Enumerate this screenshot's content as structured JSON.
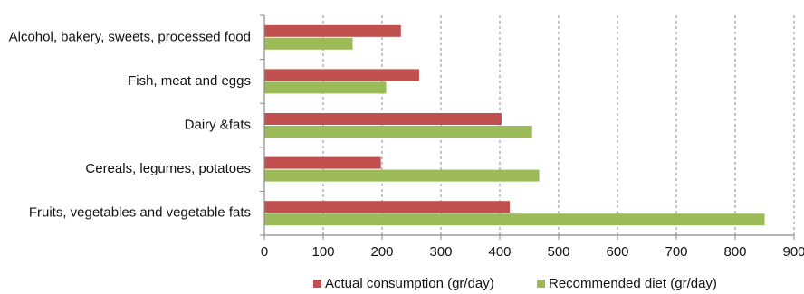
{
  "chart_data": {
    "type": "bar",
    "orientation": "horizontal",
    "categories": [
      "Alcohol, bakery, sweets, processed food",
      "Fish, meat and eggs",
      "Dairy &fats",
      "Cereals, legumes, potatoes",
      "Fruits, vegetables and vegetable fats"
    ],
    "series": [
      {
        "name": "Actual consumption (gr/day)",
        "color": "#C0504D",
        "values": [
          232,
          263,
          403,
          198,
          417
        ]
      },
      {
        "name": "Recommended diet (gr/day)",
        "color": "#9BBB59",
        "values": [
          150,
          207,
          455,
          467,
          850
        ]
      }
    ],
    "xlim": [
      0,
      900
    ],
    "xticks": [
      0,
      100,
      200,
      300,
      400,
      500,
      600,
      700,
      800,
      900
    ],
    "grid": "vertical dashed",
    "legend_position": "bottom",
    "title": "",
    "xlabel": "",
    "ylabel": ""
  }
}
